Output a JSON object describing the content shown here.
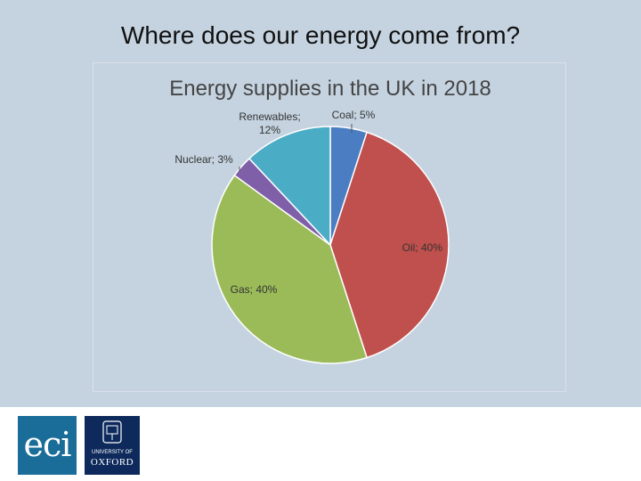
{
  "slide": {
    "title": "Where does our energy come from?"
  },
  "chart_data": {
    "type": "pie",
    "title": "Energy supplies in the UK in 2018",
    "slices": [
      {
        "label": "Coal; 5%",
        "name": "Coal",
        "value": 5,
        "color": "#4a7dc2"
      },
      {
        "label": "Oil; 40%",
        "name": "Oil",
        "value": 40,
        "color": "#c0504d"
      },
      {
        "label": "Gas; 40%",
        "name": "Gas",
        "value": 40,
        "color": "#9bbb59"
      },
      {
        "label": "Nuclear; 3%",
        "name": "Nuclear",
        "value": 3,
        "color": "#7f5fa8"
      },
      {
        "label_lines": [
          "Renewables;",
          "12%"
        ],
        "name": "Renewables",
        "value": 12,
        "color": "#4bacc6"
      }
    ],
    "start_angle_deg": 0,
    "direction": "clockwise",
    "legend": "none"
  },
  "footer": {
    "logo_eci_text": "eci",
    "logo_oxford_university": "UNIVERSITY OF",
    "logo_oxford_name": "OXFORD"
  }
}
